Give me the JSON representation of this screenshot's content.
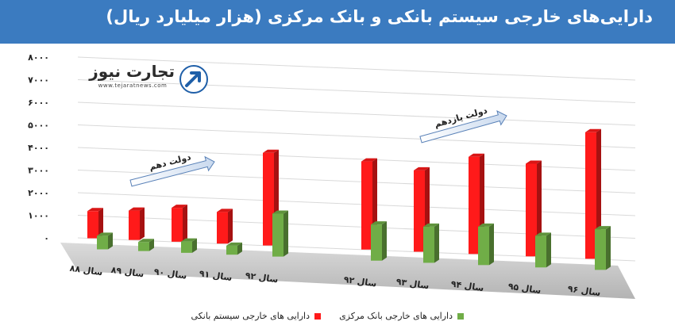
{
  "header": {
    "title": "دارایی‌های خارجی سیستم بانکی و بانک مرکزی (هزار میلیارد ریال)"
  },
  "logo": {
    "name": "تجارت نیوز",
    "url": "www.tejaratnews.com"
  },
  "colors": {
    "header_bg": "#3b7bc0",
    "banking_system": "#ff1a1a",
    "central_bank": "#70ad47"
  },
  "chart_data": {
    "type": "bar",
    "categories": [
      "سال ۸۸",
      "سال ۸۹",
      "سال ۹۰",
      "سال ۹۱",
      "سال ۹۲",
      "سال ۹۲",
      "سال ۹۳",
      "سال ۹۴",
      "سال ۹۵",
      "سال ۹۶"
    ],
    "series": [
      {
        "name": "دارایی های خارجی سیستم بانکی",
        "values": [
          1200,
          1300,
          1500,
          1400,
          4100,
          3900,
          3600,
          4300,
          4100,
          5600
        ]
      },
      {
        "name": "دارایی های خارجی بانک مرکزی",
        "values": [
          600,
          400,
          500,
          400,
          1900,
          1600,
          1600,
          1700,
          1400,
          1800
        ]
      }
    ],
    "yticks": [
      "۰",
      "۱۰۰۰",
      "۲۰۰۰",
      "۳۰۰۰",
      "۴۰۰۰",
      "۵۰۰۰",
      "۶۰۰۰",
      "۷۰۰۰",
      "۸۰۰۰"
    ],
    "ylim": [
      0,
      8000
    ],
    "grid": true,
    "legend_position": "bottom",
    "annotations": [
      {
        "text": "دولت دهم",
        "spans": "سال ۸۸ – سال ۹۲"
      },
      {
        "text": "دولت یازدهم",
        "spans": "سال ۹۲ – سال ۹۶"
      }
    ]
  }
}
